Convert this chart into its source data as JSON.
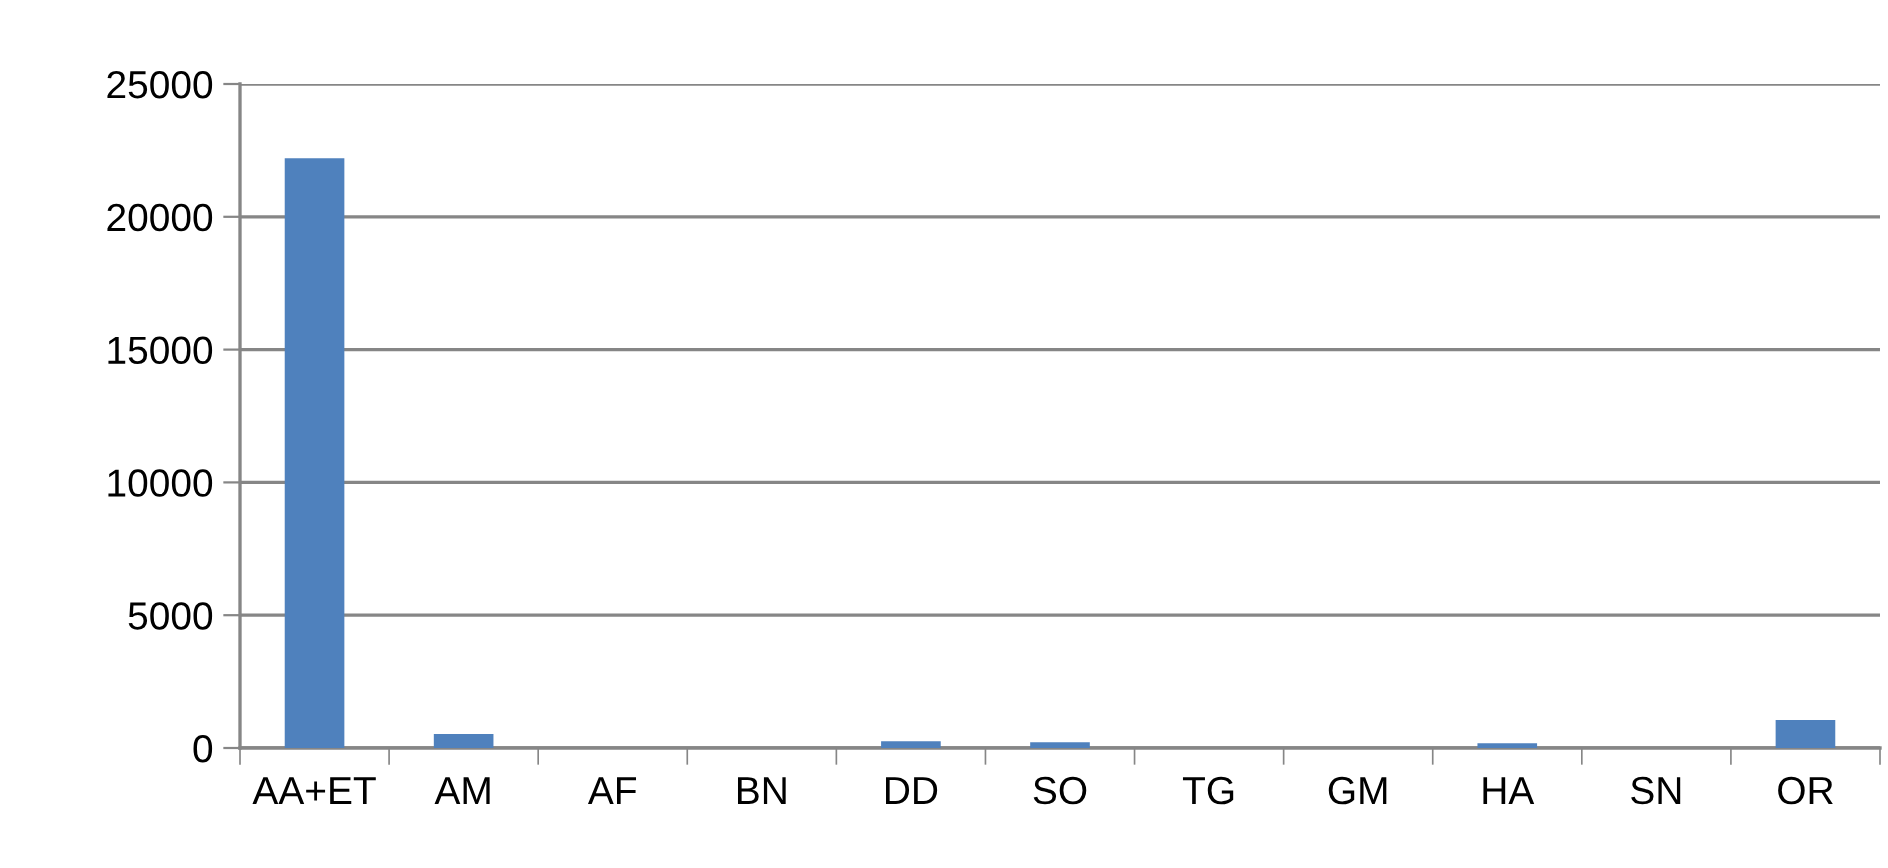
{
  "chart_data": {
    "type": "bar",
    "categories": [
      "AA+ET",
      "AM",
      "AF",
      "BN",
      "DD",
      "SO",
      "TG",
      "GM",
      "HA",
      "SN",
      "OR"
    ],
    "values": [
      22200,
      530,
      0,
      0,
      250,
      220,
      0,
      0,
      180,
      0,
      1050
    ],
    "color": "#4f81bd",
    "ylim": [
      0,
      25000
    ],
    "yticks": [
      0,
      5000,
      10000,
      15000,
      20000,
      25000
    ],
    "grid": "y",
    "legend": false
  }
}
